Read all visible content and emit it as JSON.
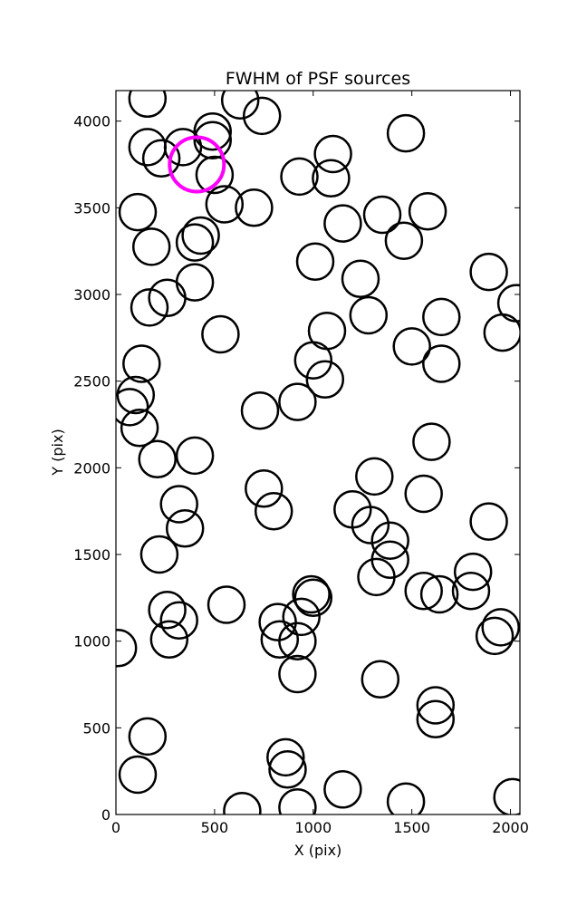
{
  "chart_data": {
    "type": "scatter",
    "title": "FWHM of PSF sources",
    "xlabel": "X (pix)",
    "ylabel": "Y (pix)",
    "xlim": [
      0,
      2048
    ],
    "ylim": [
      0,
      4176
    ],
    "xticks": [
      0,
      500,
      1000,
      1500,
      2000
    ],
    "yticks": [
      0,
      500,
      1000,
      1500,
      2000,
      2500,
      3000,
      3500,
      4000
    ],
    "grid": false,
    "marker": "open-circle",
    "marker_color": "#000000",
    "series": [
      {
        "points": [
          [
            160,
            4130
          ],
          [
            160,
            3850
          ],
          [
            230,
            3785
          ],
          [
            340,
            3850
          ],
          [
            490,
            3940
          ],
          [
            490,
            3890
          ],
          [
            630,
            4120
          ],
          [
            740,
            4030
          ],
          [
            500,
            3690
          ],
          [
            550,
            3520
          ],
          [
            700,
            3500
          ],
          [
            110,
            3475
          ],
          [
            180,
            3275
          ],
          [
            400,
            3300
          ],
          [
            430,
            3340
          ],
          [
            400,
            3070
          ],
          [
            260,
            2980
          ],
          [
            170,
            2925
          ],
          [
            530,
            2770
          ],
          [
            130,
            2600
          ],
          [
            100,
            2420
          ],
          [
            70,
            2350
          ],
          [
            120,
            2230
          ],
          [
            210,
            2050
          ],
          [
            400,
            2070
          ],
          [
            320,
            1790
          ],
          [
            350,
            1650
          ],
          [
            220,
            1500
          ],
          [
            260,
            1180
          ],
          [
            320,
            1120
          ],
          [
            270,
            1010
          ],
          [
            560,
            1210
          ],
          [
            10,
            960
          ],
          [
            160,
            450
          ],
          [
            110,
            230
          ],
          [
            640,
            20
          ],
          [
            860,
            330
          ],
          [
            870,
            260
          ],
          [
            920,
            40
          ],
          [
            1150,
            145
          ],
          [
            1470,
            75
          ],
          [
            2010,
            100
          ],
          [
            1340,
            780
          ],
          [
            1620,
            630
          ],
          [
            1620,
            550
          ],
          [
            920,
            810
          ],
          [
            920,
            1000
          ],
          [
            830,
            1010
          ],
          [
            820,
            1110
          ],
          [
            940,
            1140
          ],
          [
            990,
            1270
          ],
          [
            1000,
            1250
          ],
          [
            1320,
            1370
          ],
          [
            1390,
            1470
          ],
          [
            1390,
            1580
          ],
          [
            1290,
            1670
          ],
          [
            1200,
            1760
          ],
          [
            800,
            1750
          ],
          [
            750,
            1880
          ],
          [
            1310,
            1950
          ],
          [
            1560,
            1850
          ],
          [
            1600,
            2150
          ],
          [
            730,
            2330
          ],
          [
            920,
            2380
          ],
          [
            1000,
            2620
          ],
          [
            1060,
            2510
          ],
          [
            1070,
            2790
          ],
          [
            1500,
            2700
          ],
          [
            1650,
            2600
          ],
          [
            1650,
            2870
          ],
          [
            1280,
            2880
          ],
          [
            1240,
            3090
          ],
          [
            1010,
            3190
          ],
          [
            1150,
            3410
          ],
          [
            930,
            3680
          ],
          [
            1090,
            3670
          ],
          [
            1100,
            3810
          ],
          [
            1350,
            3460
          ],
          [
            1460,
            3310
          ],
          [
            1580,
            3480
          ],
          [
            1470,
            3930
          ],
          [
            1890,
            3130
          ],
          [
            2030,
            2950
          ],
          [
            1960,
            2780
          ],
          [
            1890,
            1690
          ],
          [
            1810,
            1400
          ],
          [
            1800,
            1290
          ],
          [
            1560,
            1290
          ],
          [
            1640,
            1270
          ],
          [
            1950,
            1080
          ],
          [
            1920,
            1030
          ]
        ]
      },
      {
        "marker_color": "#ff00ff",
        "points": [
          [
            410,
            3750
          ]
        ]
      }
    ]
  }
}
